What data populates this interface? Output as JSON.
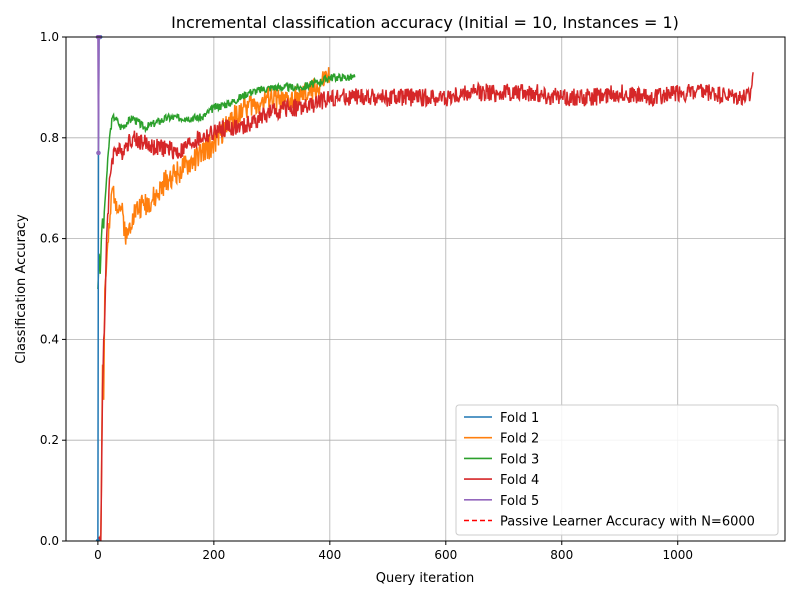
{
  "chart_data": {
    "type": "line",
    "title": "Incremental classification accuracy (Initial = 10, Instances = 1)",
    "xlabel": "Query iteration",
    "ylabel": "Classification Accuracy",
    "xlim": [
      -55,
      1185
    ],
    "ylim": [
      0.0,
      1.0
    ],
    "xticks": [
      0,
      200,
      400,
      600,
      800,
      1000
    ],
    "yticks": [
      0.0,
      0.2,
      0.4,
      0.6,
      0.8,
      1.0
    ],
    "xtick_labels": [
      "0",
      "200",
      "400",
      "600",
      "800",
      "1000"
    ],
    "ytick_labels": [
      "0.0",
      "0.2",
      "0.4",
      "0.6",
      "0.8",
      "1.0"
    ],
    "grid": true,
    "legend_position": "lower-right",
    "series": [
      {
        "name": "Fold 1",
        "color": "#1f77b4",
        "style": "solid",
        "x": [
          0,
          1,
          2,
          3,
          4
        ],
        "y": [
          0.0,
          0.77,
          1.0,
          1.0,
          1.0
        ]
      },
      {
        "name": "Fold 2",
        "color": "#ff7f0e",
        "style": "solid",
        "noise": 0.025,
        "seed": 2,
        "x": [
          0,
          5,
          8,
          10,
          12,
          15,
          20,
          25,
          30,
          40,
          50,
          60,
          80,
          100,
          120,
          150,
          180,
          200,
          220,
          250,
          280,
          300,
          320,
          350,
          380,
          395,
          400
        ],
        "y": [
          0.0,
          0.0,
          0.35,
          0.28,
          0.5,
          0.55,
          0.62,
          0.7,
          0.68,
          0.66,
          0.6,
          0.65,
          0.67,
          0.68,
          0.72,
          0.74,
          0.77,
          0.79,
          0.82,
          0.86,
          0.87,
          0.88,
          0.87,
          0.88,
          0.9,
          0.92,
          0.92
        ]
      },
      {
        "name": "Fold 3",
        "color": "#2ca02c",
        "style": "solid",
        "noise": 0.008,
        "seed": 3,
        "x": [
          0,
          2,
          4,
          6,
          8,
          10,
          12,
          15,
          20,
          25,
          30,
          35,
          40,
          50,
          60,
          80,
          100,
          120,
          150,
          180,
          200,
          230,
          260,
          300,
          350,
          380,
          400,
          420,
          443
        ],
        "y": [
          0.5,
          0.57,
          0.53,
          0.6,
          0.64,
          0.62,
          0.67,
          0.72,
          0.8,
          0.84,
          0.84,
          0.83,
          0.82,
          0.83,
          0.84,
          0.82,
          0.83,
          0.84,
          0.84,
          0.84,
          0.86,
          0.87,
          0.89,
          0.9,
          0.9,
          0.91,
          0.92,
          0.92,
          0.92
        ]
      },
      {
        "name": "Fold 4",
        "color": "#d62728",
        "style": "solid",
        "noise": 0.018,
        "seed": 4,
        "x": [
          0,
          5,
          8,
          10,
          12,
          15,
          18,
          20,
          25,
          30,
          40,
          50,
          60,
          80,
          100,
          120,
          140,
          160,
          180,
          200,
          220,
          250,
          280,
          300,
          330,
          360,
          380,
          400,
          450,
          500,
          550,
          600,
          650,
          700,
          750,
          800,
          850,
          900,
          950,
          1000,
          1050,
          1100,
          1125,
          1130
        ],
        "y": [
          0.0,
          0.0,
          0.3,
          0.4,
          0.45,
          0.6,
          0.65,
          0.72,
          0.76,
          0.78,
          0.77,
          0.79,
          0.8,
          0.79,
          0.78,
          0.78,
          0.77,
          0.79,
          0.8,
          0.81,
          0.82,
          0.82,
          0.84,
          0.85,
          0.86,
          0.86,
          0.87,
          0.88,
          0.88,
          0.88,
          0.88,
          0.88,
          0.89,
          0.89,
          0.89,
          0.88,
          0.88,
          0.89,
          0.88,
          0.89,
          0.89,
          0.88,
          0.88,
          0.93
        ]
      },
      {
        "name": "Fold 5",
        "color": "#9467bd",
        "style": "solid",
        "x": [
          0,
          1,
          2,
          3
        ],
        "y": [
          1.0,
          0.77,
          1.0,
          1.0
        ]
      },
      {
        "name": "Passive Learner Accuracy with N=6000",
        "color": "#ff0000",
        "style": "dashed",
        "x": [],
        "y": []
      }
    ]
  }
}
